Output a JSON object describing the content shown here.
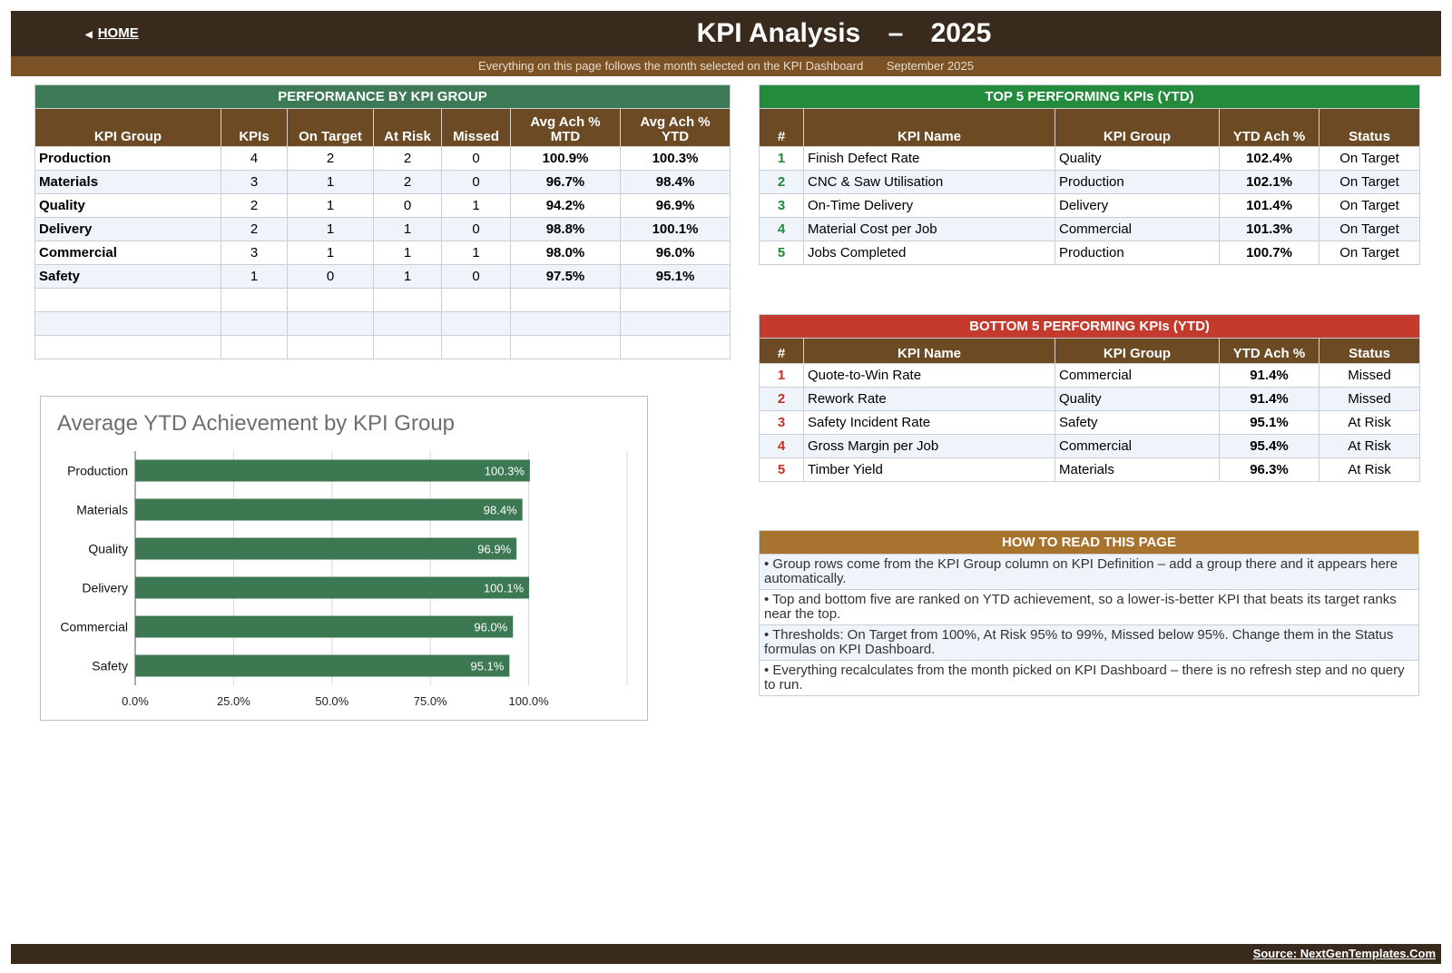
{
  "header": {
    "home_label": "HOME",
    "home_icon": "triangle-left-icon",
    "title": "KPI Analysis",
    "dash": "–",
    "year": "2025",
    "subtitle": "Everything on this page follows the month selected on the KPI Dashboard",
    "month": "September 2025"
  },
  "group_table": {
    "title": "PERFORMANCE BY KPI GROUP",
    "title_color": "#3f7a56",
    "headers": [
      "KPI Group",
      "KPIs",
      "On Target",
      "At Risk",
      "Missed",
      "Avg Ach %\nMTD",
      "Avg Ach %\nYTD"
    ],
    "rows": [
      [
        "Production",
        "4",
        "2",
        "2",
        "0",
        "100.9%",
        "100.3%"
      ],
      [
        "Materials",
        "3",
        "1",
        "2",
        "0",
        "96.7%",
        "98.4%"
      ],
      [
        "Quality",
        "2",
        "1",
        "0",
        "1",
        "94.2%",
        "96.9%"
      ],
      [
        "Delivery",
        "2",
        "1",
        "1",
        "0",
        "98.8%",
        "100.1%"
      ],
      [
        "Commercial",
        "3",
        "1",
        "1",
        "1",
        "98.0%",
        "96.0%"
      ],
      [
        "Safety",
        "1",
        "0",
        "1",
        "0",
        "97.5%",
        "95.1%"
      ]
    ]
  },
  "top5": {
    "title": "TOP 5 PERFORMING KPIs  (YTD)",
    "title_color": "#238c3c",
    "headers": [
      "#",
      "KPI Name",
      "KPI Group",
      "YTD Ach %",
      "Status"
    ],
    "rows": [
      [
        "1",
        "Finish Defect Rate",
        "Quality",
        "102.4%",
        "On Target"
      ],
      [
        "2",
        "CNC & Saw Utilisation",
        "Production",
        "102.1%",
        "On Target"
      ],
      [
        "3",
        "On-Time Delivery",
        "Delivery",
        "101.4%",
        "On Target"
      ],
      [
        "4",
        "Material Cost per Job",
        "Commercial",
        "101.3%",
        "On Target"
      ],
      [
        "5",
        "Jobs Completed",
        "Production",
        "100.7%",
        "On Target"
      ]
    ]
  },
  "bottom5": {
    "title": "BOTTOM 5 PERFORMING KPIs  (YTD)",
    "title_color": "#c43a2c",
    "headers": [
      "#",
      "KPI Name",
      "KPI Group",
      "YTD Ach %",
      "Status"
    ],
    "rows": [
      [
        "1",
        "Quote-to-Win Rate",
        "Commercial",
        "91.4%",
        "Missed"
      ],
      [
        "2",
        "Rework Rate",
        "Quality",
        "91.4%",
        "Missed"
      ],
      [
        "3",
        "Safety Incident Rate",
        "Safety",
        "95.1%",
        "At Risk"
      ],
      [
        "4",
        "Gross Margin per Job",
        "Commercial",
        "95.4%",
        "At Risk"
      ],
      [
        "5",
        "Timber Yield",
        "Materials",
        "96.3%",
        "At Risk"
      ]
    ]
  },
  "help": {
    "title": "HOW TO READ THIS PAGE",
    "title_color": "#a8732e",
    "lines": [
      "•  Group rows come from the KPI Group column on KPI Definition – add a group there and it appears here automatically.",
      "•  Top and bottom five are ranked on YTD achievement, so a lower-is-better KPI that beats its target ranks near the top.",
      "•  Thresholds: On Target from 100%, At Risk 95% to 99%, Missed below 95%. Change them in the Status formulas on KPI Dashboard.",
      "•  Everything recalculates from the month picked on KPI Dashboard – there is no refresh step and no query to run."
    ]
  },
  "chart_data": {
    "type": "bar",
    "orientation": "horizontal",
    "title": "Average YTD Achievement by KPI Group",
    "categories": [
      "Production",
      "Materials",
      "Quality",
      "Delivery",
      "Commercial",
      "Safety"
    ],
    "values": [
      100.3,
      98.4,
      96.9,
      100.1,
      96.0,
      95.1
    ],
    "data_labels": [
      "100.3%",
      "98.4%",
      "96.9%",
      "100.1%",
      "96.0%",
      "95.1%"
    ],
    "xticks": [
      "0.0%",
      "25.0%",
      "50.0%",
      "75.0%",
      "100.0%"
    ],
    "xlim": [
      0,
      125
    ],
    "grid": true,
    "bar_color": "#3c7852"
  },
  "footer": {
    "source": "Source: NextGenTemplates.Com"
  }
}
